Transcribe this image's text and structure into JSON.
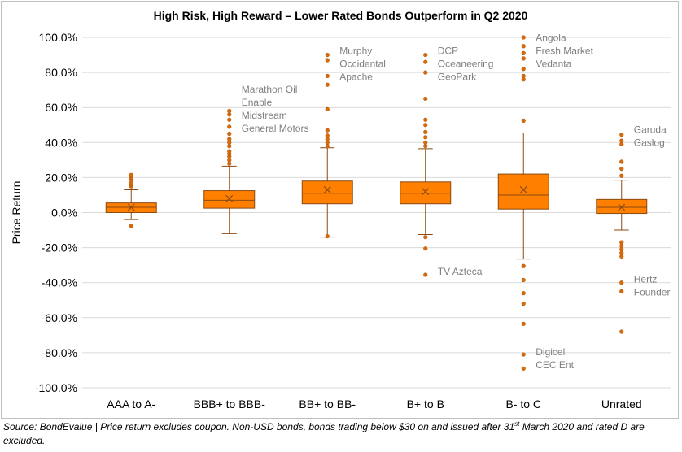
{
  "chart_data": {
    "type": "box",
    "title": "High Risk, High Reward – Lower Rated Bonds Outperform in Q2 2020",
    "ylabel": "Price Return",
    "xlabel": "",
    "ylim": [
      -100,
      100
    ],
    "y_ticks": [
      -100,
      -80,
      -60,
      -40,
      -20,
      0,
      20,
      40,
      60,
      80,
      100
    ],
    "y_tick_labels": [
      "-100.0%",
      "-80.0%",
      "-60.0%",
      "-40.0%",
      "-20.0%",
      "0.0%",
      "20.0%",
      "40.0%",
      "60.0%",
      "80.0%",
      "100.0%"
    ],
    "grid": "horizontal",
    "legend": "none",
    "colors": {
      "box_fill": "#ff8000",
      "box_edge": "#8b4a12",
      "whisker": "#8b4a12",
      "outlier": "#d96a0a",
      "mean_marker": "#8b4a12",
      "annotation": "#7f7f7f",
      "grid": "#d9d9d9"
    },
    "categories": [
      "AAA to A-",
      "BBB+ to BBB-",
      "BB+ to BB-",
      "B+ to B",
      "B- to C",
      "Unrated"
    ],
    "boxes": [
      {
        "category": "AAA to A-",
        "whisker_low": -4,
        "q1": 0,
        "median": 3,
        "q3": 5.5,
        "whisker_high": 13,
        "mean": 3,
        "outliers": [
          -7.5,
          15,
          16,
          17,
          19,
          20,
          21.5
        ]
      },
      {
        "category": "BBB+ to BBB-",
        "whisker_low": -12,
        "q1": 2.5,
        "median": 7,
        "q3": 12.5,
        "whisker_high": 26.5,
        "mean": 8,
        "outliers": [
          28,
          30,
          32,
          33.5,
          35,
          38,
          40,
          42,
          45,
          49,
          53,
          56,
          58
        ]
      },
      {
        "category": "BB+ to BB-",
        "whisker_low": -14,
        "q1": 5,
        "median": 11,
        "q3": 18,
        "whisker_high": 37,
        "mean": 13,
        "outliers": [
          -13.5,
          38,
          40,
          42,
          44,
          47,
          59,
          73,
          78,
          87,
          90
        ]
      },
      {
        "category": "B+ to B",
        "whisker_low": -12.5,
        "q1": 5,
        "median": 11,
        "q3": 17.5,
        "whisker_high": 36.5,
        "mean": 12,
        "outliers": [
          -35.5,
          -20.5,
          -14,
          38,
          40,
          43,
          46,
          50,
          53,
          65,
          80,
          86,
          90
        ]
      },
      {
        "category": "B- to C",
        "whisker_low": -26.5,
        "q1": 2,
        "median": 10,
        "q3": 22,
        "whisker_high": 45.5,
        "mean": 13,
        "outliers": [
          -89,
          -81,
          -63.5,
          -52,
          -46,
          -38.5,
          -30.5,
          52.5,
          76,
          78,
          82,
          88,
          91,
          95,
          100
        ]
      },
      {
        "category": "Unrated",
        "whisker_low": -10,
        "q1": -0.5,
        "median": 3,
        "q3": 7.5,
        "whisker_high": 18.5,
        "mean": 3,
        "outliers": [
          -68,
          -45,
          -40,
          -25,
          -23,
          -21,
          -19,
          -17,
          21,
          25,
          29,
          39,
          41,
          44.5
        ]
      }
    ],
    "annotations": [
      {
        "category": "BBB+ to BBB-",
        "lines": [
          "Marathon Oil",
          "Enable",
          "Midstream",
          "General Motors"
        ],
        "y": 68.5
      },
      {
        "category": "BB+ to BB-",
        "lines": [
          "Murphy",
          "Occidental",
          "Apache"
        ],
        "y": 90.5
      },
      {
        "category": "B+ to B",
        "lines": [
          "DCP",
          "Oceaneering",
          "GeoPark"
        ],
        "y": 90.5
      },
      {
        "category": "B+ to B",
        "lines": [
          "TV Azteca"
        ],
        "y": -35.5
      },
      {
        "category": "B- to C",
        "lines": [
          "Angola",
          "Fresh Market",
          "Vedanta"
        ],
        "y": 98
      },
      {
        "category": "B- to C",
        "lines": [
          "Digicel",
          "CEC Ent"
        ],
        "y": -81.5
      },
      {
        "category": "Unrated",
        "lines": [
          "Garuda",
          "Gaslog"
        ],
        "y": 45.5
      },
      {
        "category": "Unrated",
        "lines": [
          "Hertz",
          "Founder"
        ],
        "y": -40
      }
    ]
  },
  "footnote": {
    "before_sup": "Source: BondEvalue | Price return excludes coupon. Non-USD bonds, bonds trading below $30 on and issued after 31",
    "sup": "st",
    "after_sup": " March 2020 and rated D are excluded."
  }
}
